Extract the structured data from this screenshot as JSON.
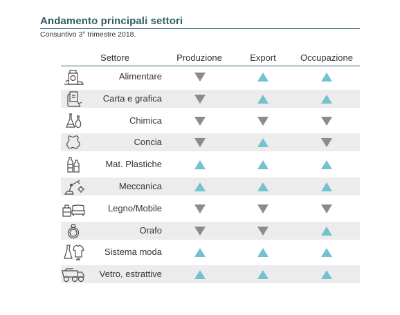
{
  "title": "Andamento principali settori",
  "subtitle": "Consuntivo 3° trimestre 2018.",
  "colors": {
    "up": "#72c2cf",
    "down": "#8b8b8b",
    "accent": "#2f5f65",
    "alt_row": "#ececec"
  },
  "chart_data": {
    "type": "table",
    "columns": [
      "Settore",
      "Produzione",
      "Export",
      "Occupazione"
    ],
    "rows": [
      {
        "settore": "Alimentare",
        "icon": "food-icon",
        "produzione": "down",
        "export": "up",
        "occupazione": "up"
      },
      {
        "settore": "Carta e grafica",
        "icon": "paper-icon",
        "produzione": "down",
        "export": "up",
        "occupazione": "up"
      },
      {
        "settore": "Chimica",
        "icon": "chemistry-icon",
        "produzione": "down",
        "export": "down",
        "occupazione": "down"
      },
      {
        "settore": "Concia",
        "icon": "leather-icon",
        "produzione": "down",
        "export": "up",
        "occupazione": "down"
      },
      {
        "settore": "Mat. Plastiche",
        "icon": "bottles-icon",
        "produzione": "up",
        "export": "up",
        "occupazione": "up"
      },
      {
        "settore": "Meccanica",
        "icon": "robot-arm-icon",
        "produzione": "up",
        "export": "up",
        "occupazione": "up"
      },
      {
        "settore": "Legno/Mobile",
        "icon": "furniture-icon",
        "produzione": "down",
        "export": "down",
        "occupazione": "down"
      },
      {
        "settore": "Orafo",
        "icon": "ring-icon",
        "produzione": "down",
        "export": "down",
        "occupazione": "up"
      },
      {
        "settore": "Sistema moda",
        "icon": "clothes-icon",
        "produzione": "up",
        "export": "up",
        "occupazione": "up"
      },
      {
        "settore": "Vetro, estrattive",
        "icon": "truck-icon",
        "produzione": "up",
        "export": "up",
        "occupazione": "up"
      }
    ]
  }
}
